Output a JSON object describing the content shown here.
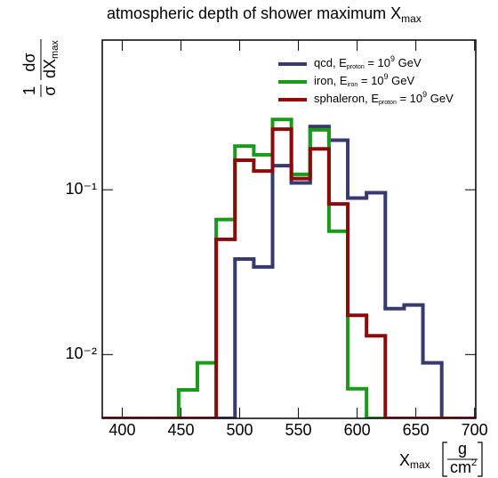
{
  "chart_data": {
    "type": "histogram",
    "title": {
      "text": "atmospheric depth of shower maximum X",
      "subscript": "max"
    },
    "y_label": {
      "numerator": "1",
      "denominator": "σ",
      "d_numerator": "dσ",
      "d_denominator": "dX",
      "d_subscript": "max"
    },
    "x_label": {
      "text": "X",
      "subscript": "max",
      "unit_numerator": "g",
      "unit_denominator": "cm",
      "unit_power": "2"
    },
    "bins": [
      384,
      400,
      416,
      432,
      448,
      464,
      480,
      496,
      512,
      528,
      544,
      560,
      576,
      592,
      608,
      624,
      640,
      656,
      672,
      688,
      704
    ],
    "series": [
      {
        "name": [
          "qcd, E",
          "proton",
          " = 10",
          "9",
          " GeV"
        ],
        "color": "#363a6e",
        "values": [
          0,
          0,
          0,
          0,
          0,
          0,
          0,
          0.038,
          0.034,
          0.14,
          0.11,
          0.242,
          0.2,
          0.089,
          0.096,
          0.019,
          0.02,
          0.0089,
          0,
          0
        ]
      },
      {
        "name": [
          "iron, E",
          "iron",
          " = 10",
          "9",
          " GeV"
        ],
        "color": "#1a9a1a",
        "values": [
          0,
          0,
          0,
          0,
          0.0061,
          0.0089,
          0.066,
          0.184,
          0.163,
          0.267,
          0.124,
          0.231,
          0.056,
          0.0062,
          0,
          0,
          0,
          0,
          0,
          0
        ]
      },
      {
        "name": [
          "sphaleron, E",
          "proton",
          " = 10",
          "9",
          " GeV"
        ],
        "color": "#8b0a0a",
        "values": [
          0,
          0,
          0,
          0,
          0,
          0,
          0.05,
          0.151,
          0.13,
          0.233,
          0.117,
          0.177,
          0.082,
          0.0173,
          0.013,
          0,
          0,
          0,
          0,
          0
        ]
      }
    ],
    "xlim": [
      383,
      701
    ],
    "xticks": [
      400,
      450,
      500,
      550,
      600,
      650,
      700
    ],
    "ylim": [
      0.0041,
      0.81
    ],
    "yticks": [
      {
        "value": 0.1,
        "label": "10⁻¹"
      },
      {
        "value": 0.01,
        "label": "10⁻²"
      }
    ],
    "log_y": true,
    "legend": "top-right"
  }
}
